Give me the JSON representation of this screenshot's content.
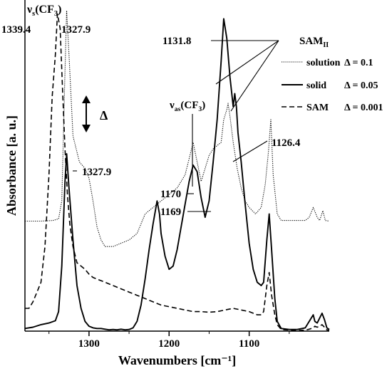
{
  "chart_data": {
    "type": "line",
    "title": "",
    "xlabel": "Wavenumbers [cm⁻¹]",
    "ylabel": "Absorbance [a. u.]",
    "x_reversed": true,
    "xlim": [
      1380,
      1000
    ],
    "ylim": [
      0,
      1
    ],
    "grid": false,
    "x_ticks": [
      1300,
      1200,
      1100
    ],
    "y_ticks_shown": false,
    "legend": {
      "position": "top-right",
      "title": "SAM",
      "title_subscript": "II",
      "entries": [
        {
          "label": "solution",
          "delta": "Δ = 0.1",
          "style": "dotted"
        },
        {
          "label": "solid",
          "delta": "Δ = 0.05",
          "style": "solid"
        },
        {
          "label": "SAM",
          "delta": "Δ = 0.001",
          "style": "dashed"
        }
      ]
    },
    "scale_bar_label": "Δ",
    "annotations": [
      {
        "text": "ν",
        "sub": "s",
        "suffix": "(CF",
        "sub2": "3",
        "suffix2": ")"
      },
      {
        "text": "1339.4"
      },
      {
        "text": "1327.9"
      },
      {
        "text": "1327.9"
      },
      {
        "text": "1131.8"
      },
      {
        "text": "ν",
        "sub": "as",
        "suffix": "(CF",
        "sub2": "3",
        "suffix2": ")"
      },
      {
        "text": "1126.4"
      },
      {
        "text": "1170"
      },
      {
        "text": "1169"
      }
    ],
    "series": [
      {
        "name": "solution",
        "style": "dotted",
        "x": [
          1380,
          1360,
          1345,
          1338,
          1334,
          1330,
          1327.9,
          1325,
          1320,
          1312,
          1305,
          1300,
          1295,
          1290,
          1285,
          1280,
          1270,
          1260,
          1250,
          1240,
          1230,
          1220,
          1210,
          1200,
          1190,
          1180,
          1175,
          1170,
          1165,
          1160,
          1155,
          1150,
          1145,
          1140,
          1135,
          1131.8,
          1128,
          1126.4,
          1124,
          1120,
          1115,
          1110,
          1105,
          1100,
          1092,
          1085,
          1080,
          1076,
          1073,
          1070,
          1065,
          1060,
          1050,
          1040,
          1030,
          1025,
          1020,
          1015,
          1012,
          1008,
          1005,
          1000
        ],
        "y": [
          0.338,
          0.338,
          0.34,
          0.345,
          0.4,
          0.8,
          0.985,
          0.85,
          0.6,
          0.52,
          0.5,
          0.47,
          0.4,
          0.32,
          0.28,
          0.26,
          0.26,
          0.27,
          0.28,
          0.3,
          0.36,
          0.38,
          0.4,
          0.42,
          0.44,
          0.48,
          0.53,
          0.58,
          0.52,
          0.46,
          0.5,
          0.54,
          0.56,
          0.57,
          0.58,
          0.65,
          0.68,
          0.7,
          0.66,
          0.58,
          0.5,
          0.44,
          0.4,
          0.38,
          0.36,
          0.38,
          0.45,
          0.55,
          0.65,
          0.48,
          0.36,
          0.34,
          0.34,
          0.34,
          0.34,
          0.35,
          0.38,
          0.35,
          0.34,
          0.37,
          0.34,
          0.338
        ]
      },
      {
        "name": "solid",
        "style": "solid",
        "x": [
          1380,
          1370,
          1360,
          1350,
          1342,
          1338,
          1334,
          1330,
          1327.9,
          1325,
          1320,
          1315,
          1310,
          1305,
          1300,
          1295,
          1290,
          1285,
          1280,
          1275,
          1270,
          1265,
          1260,
          1255,
          1250,
          1245,
          1240,
          1235,
          1230,
          1225,
          1220,
          1215,
          1212,
          1210,
          1205,
          1200,
          1195,
          1190,
          1185,
          1180,
          1175,
          1170,
          1165,
          1160,
          1155,
          1150,
          1145,
          1140,
          1135,
          1131.8,
          1128,
          1124,
          1120,
          1118,
          1116,
          1114,
          1110,
          1105,
          1100,
          1095,
          1090,
          1085,
          1082,
          1078,
          1075,
          1072,
          1068,
          1065,
          1060,
          1050,
          1040,
          1030,
          1025,
          1020,
          1018,
          1015,
          1012,
          1009,
          1006,
          1003,
          1000
        ],
        "y": [
          0.008,
          0.012,
          0.02,
          0.025,
          0.032,
          0.06,
          0.2,
          0.46,
          0.545,
          0.44,
          0.28,
          0.14,
          0.07,
          0.03,
          0.015,
          0.01,
          0.008,
          0.008,
          0.006,
          0.004,
          0.005,
          0.004,
          0.006,
          0.004,
          0.005,
          0.01,
          0.03,
          0.08,
          0.16,
          0.25,
          0.33,
          0.4,
          0.36,
          0.3,
          0.23,
          0.19,
          0.2,
          0.25,
          0.32,
          0.39,
          0.46,
          0.51,
          0.49,
          0.41,
          0.35,
          0.4,
          0.52,
          0.65,
          0.83,
          0.96,
          0.9,
          0.78,
          0.69,
          0.73,
          0.69,
          0.61,
          0.52,
          0.39,
          0.27,
          0.19,
          0.15,
          0.14,
          0.15,
          0.28,
          0.36,
          0.25,
          0.1,
          0.03,
          0.008,
          0.005,
          0.005,
          0.01,
          0.03,
          0.05,
          0.03,
          0.025,
          0.04,
          0.055,
          0.035,
          0.01,
          0.005
        ]
      },
      {
        "name": "SAM",
        "style": "dashed",
        "x": [
          1380,
          1375,
          1370,
          1365,
          1360,
          1355,
          1350,
          1346,
          1342,
          1339.4,
          1336,
          1333,
          1330,
          1327,
          1324,
          1320,
          1315,
          1310,
          1305,
          1300,
          1295,
          1290,
          1280,
          1270,
          1260,
          1250,
          1240,
          1230,
          1220,
          1210,
          1200,
          1190,
          1180,
          1170,
          1160,
          1150,
          1140,
          1130,
          1120,
          1110,
          1100,
          1095,
          1090,
          1085,
          1082,
          1078,
          1075,
          1072,
          1068,
          1065,
          1060,
          1050,
          1040,
          1030,
          1025,
          1020,
          1018,
          1015,
          1012,
          1009,
          1006,
          1003,
          1000
        ],
        "y": [
          0.07,
          0.07,
          0.09,
          0.12,
          0.15,
          0.26,
          0.48,
          0.72,
          0.85,
          0.975,
          0.93,
          0.74,
          0.56,
          0.42,
          0.33,
          0.26,
          0.21,
          0.2,
          0.19,
          0.175,
          0.165,
          0.16,
          0.15,
          0.14,
          0.13,
          0.12,
          0.11,
          0.1,
          0.09,
          0.08,
          0.075,
          0.07,
          0.065,
          0.06,
          0.06,
          0.058,
          0.06,
          0.065,
          0.07,
          0.065,
          0.06,
          0.055,
          0.05,
          0.05,
          0.06,
          0.14,
          0.18,
          0.11,
          0.05,
          0.02,
          0.005,
          0.003,
          0.002,
          0.003,
          0.006,
          0.01,
          0.015,
          0.012,
          0.015,
          0.02,
          0.012,
          0.004,
          0.002
        ]
      }
    ]
  }
}
